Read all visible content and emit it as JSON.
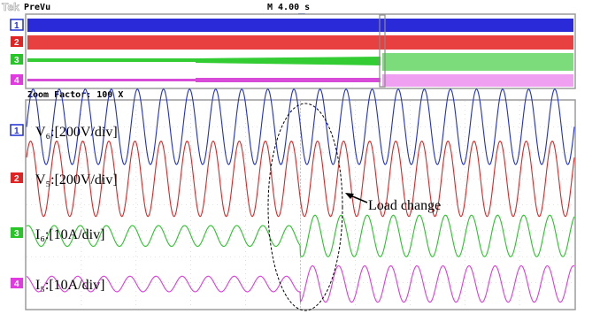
{
  "header": {
    "brand": "Tek",
    "mode": "PreVu",
    "timebase": "M 4.00 s"
  },
  "zoom": {
    "label": "Zoom Factor: 100 X"
  },
  "colors": {
    "frame": "#9c9c9c",
    "ch1": "#1f2fd0",
    "ch2": "#e02424",
    "ch3": "#27c527",
    "ch4": "#e03ae0",
    "trigger": "#1a5ad6",
    "annotation": "#000000"
  },
  "chart_data": {
    "type": "line",
    "title": "",
    "annotation": "Load change",
    "x_divisions": 10,
    "y_divisions": 8,
    "event_division": 5,
    "series": [
      {
        "channel": "1",
        "name": "V₆:[200V/div]",
        "color": "#1f2fd0",
        "cycles": 21,
        "amplitude_before": 1.45,
        "amplitude_after": 1.45
      },
      {
        "channel": "2",
        "name": "V₅:[200V/div]",
        "color": "#e02424",
        "cycles": 21,
        "amplitude_before": 1.45,
        "amplitude_after": 1.45
      },
      {
        "channel": "3",
        "name": "I₆:[10A/div]",
        "color": "#27c527",
        "cycles": 21,
        "amplitude_before": 0.4,
        "amplitude_after": 0.8
      },
      {
        "channel": "4",
        "name": "I₅:[10A/div]",
        "color": "#e03ae0",
        "cycles": 21,
        "amplitude_before": 0.3,
        "amplitude_after": 0.7
      }
    ]
  }
}
